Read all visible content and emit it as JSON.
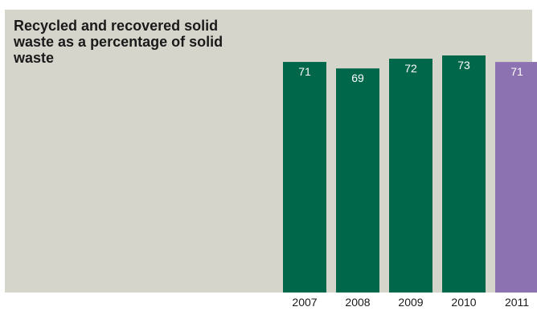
{
  "chart_data": {
    "type": "bar",
    "title": "Recycled and recovered solid waste as a percentage of solid waste",
    "categories": [
      "2007",
      "2008",
      "2009",
      "2010",
      "2011"
    ],
    "values": [
      71,
      69,
      72,
      73,
      71
    ],
    "xlabel": "",
    "ylabel": "",
    "ylim": [
      0,
      73
    ],
    "grid": false,
    "colors": [
      "#00674a",
      "#00674a",
      "#00674a",
      "#00674a",
      "#8c72b0"
    ],
    "background": "#d6d5cb"
  }
}
